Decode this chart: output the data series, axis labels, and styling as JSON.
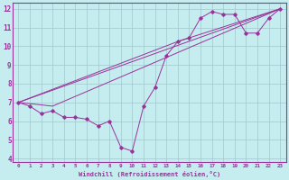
{
  "xlabel": "Windchill (Refroidissement éolien,°C)",
  "background_color": "#c5ecee",
  "grid_color": "#a0c8cc",
  "line_color": "#993399",
  "spine_color": "#993399",
  "xlim": [
    -0.5,
    23.5
  ],
  "ylim": [
    3.8,
    12.3
  ],
  "xticks": [
    0,
    1,
    2,
    3,
    4,
    5,
    6,
    7,
    8,
    9,
    10,
    11,
    12,
    13,
    14,
    15,
    16,
    17,
    18,
    19,
    20,
    21,
    22,
    23
  ],
  "yticks": [
    4,
    5,
    6,
    7,
    8,
    9,
    10,
    11,
    12
  ],
  "series": [
    [
      0,
      7.0
    ],
    [
      1,
      6.8
    ],
    [
      2,
      6.4
    ],
    [
      3,
      6.55
    ],
    [
      4,
      6.2
    ],
    [
      5,
      6.2
    ],
    [
      6,
      6.1
    ],
    [
      7,
      5.75
    ],
    [
      8,
      6.0
    ],
    [
      9,
      4.6
    ],
    [
      10,
      4.4
    ],
    [
      11,
      6.8
    ],
    [
      12,
      7.8
    ],
    [
      13,
      9.5
    ],
    [
      14,
      10.25
    ],
    [
      15,
      10.45
    ],
    [
      16,
      11.5
    ],
    [
      17,
      11.85
    ],
    [
      18,
      11.7
    ],
    [
      19,
      11.7
    ],
    [
      20,
      10.7
    ],
    [
      21,
      10.7
    ],
    [
      22,
      11.5
    ],
    [
      23,
      12.0
    ]
  ],
  "line2": [
    [
      0,
      7.0
    ],
    [
      23,
      12.0
    ]
  ],
  "line3": [
    [
      0,
      7.0
    ],
    [
      3,
      6.8
    ],
    [
      23,
      12.0
    ]
  ],
  "line4": [
    [
      0,
      7.0
    ],
    [
      14,
      10.25
    ],
    [
      23,
      12.0
    ]
  ]
}
